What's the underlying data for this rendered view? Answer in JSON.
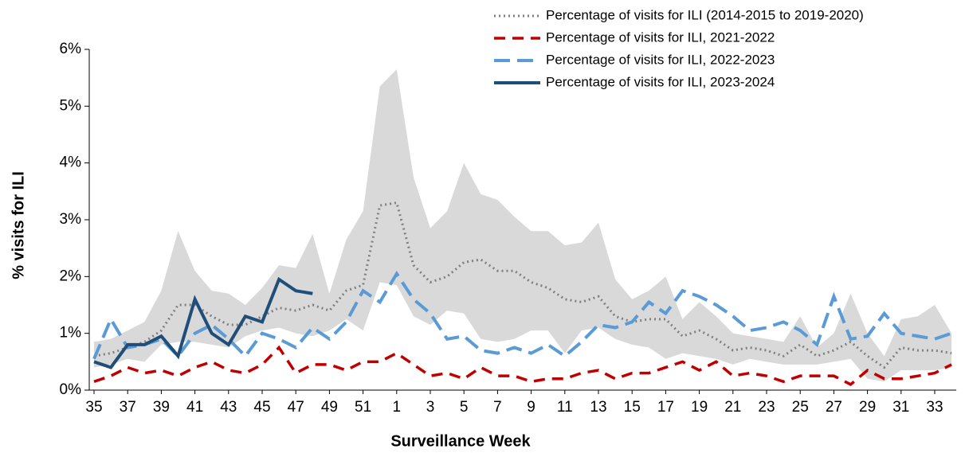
{
  "chart_data": {
    "type": "line",
    "x_label": "Surveillance  Week",
    "y_label": "% visits for ILI",
    "categories": [
      "35",
      null,
      "37",
      null,
      "39",
      null,
      "41",
      null,
      "43",
      null,
      "45",
      null,
      "47",
      null,
      "49",
      null,
      "51",
      null,
      "1",
      null,
      "3",
      null,
      "5",
      null,
      "7",
      null,
      "9",
      null,
      "11",
      null,
      "13",
      null,
      "15",
      null,
      "17",
      null,
      "19",
      null,
      "21",
      null,
      "23",
      null,
      "25",
      null,
      "27",
      null,
      "29",
      null,
      "31",
      null,
      "33",
      null
    ],
    "ylim": [
      0,
      6
    ],
    "yticks": [
      {
        "value": 0,
        "label": "0%"
      },
      {
        "value": 1,
        "label": "1%"
      },
      {
        "value": 2,
        "label": "2%"
      },
      {
        "value": 3,
        "label": "3%"
      },
      {
        "value": 4,
        "label": "4%"
      },
      {
        "value": 5,
        "label": "5%"
      },
      {
        "value": 6,
        "label": "6%"
      }
    ],
    "band": {
      "color": "#d9d9d9",
      "upper": [
        0.85,
        0.9,
        1.05,
        1.2,
        1.75,
        2.8,
        2.1,
        1.75,
        1.7,
        1.5,
        1.8,
        2.2,
        2.15,
        2.75,
        1.7,
        2.65,
        3.15,
        5.35,
        5.65,
        3.75,
        2.85,
        3.15,
        4.0,
        3.45,
        3.35,
        3.05,
        2.8,
        2.8,
        2.55,
        2.6,
        2.95,
        1.95,
        1.6,
        1.75,
        2.0,
        1.25,
        1.55,
        1.3,
        1.0,
        0.95,
        0.9,
        0.85,
        1.3,
        0.75,
        1.0,
        1.7,
        1.0,
        0.6,
        1.25,
        1.3,
        1.5,
        1.0
      ],
      "lower": [
        0.4,
        0.45,
        0.55,
        0.5,
        0.8,
        0.85,
        0.85,
        0.8,
        0.75,
        0.95,
        1.05,
        1.1,
        1.0,
        0.95,
        1.05,
        1.25,
        1.05,
        1.9,
        1.85,
        1.3,
        1.15,
        1.4,
        1.35,
        0.9,
        0.85,
        0.9,
        1.05,
        1.05,
        0.65,
        1.05,
        1.1,
        0.9,
        0.8,
        0.75,
        0.55,
        0.65,
        0.6,
        0.55,
        0.45,
        0.55,
        0.5,
        0.45,
        0.45,
        0.45,
        0.5,
        0.55,
        0.2,
        0.15,
        0.35,
        0.35,
        0.35,
        0.4
      ]
    },
    "series": [
      {
        "name": "Percentage of visits for ILI (2014-2015 to 2019-2020)",
        "color": "#808080",
        "dash": "dotted",
        "values": [
          0.6,
          0.65,
          0.75,
          0.85,
          1.05,
          1.5,
          1.5,
          1.3,
          1.15,
          1.15,
          1.3,
          1.45,
          1.4,
          1.5,
          1.4,
          1.75,
          1.85,
          3.25,
          3.3,
          2.2,
          1.9,
          2.0,
          2.25,
          2.3,
          2.1,
          2.1,
          1.9,
          1.8,
          1.6,
          1.55,
          1.65,
          1.3,
          1.2,
          1.25,
          1.25,
          0.95,
          1.05,
          0.9,
          0.7,
          0.75,
          0.7,
          0.6,
          0.8,
          0.6,
          0.7,
          0.85,
          0.6,
          0.4,
          0.75,
          0.7,
          0.7,
          0.65
        ]
      },
      {
        "name": "Percentage of visits for ILI, 2021-2022",
        "color": "#c00000",
        "dash": "dashed",
        "values": [
          0.15,
          0.25,
          0.4,
          0.3,
          0.35,
          0.25,
          0.4,
          0.5,
          0.35,
          0.3,
          0.45,
          0.75,
          0.3,
          0.45,
          0.45,
          0.35,
          0.5,
          0.5,
          0.65,
          0.45,
          0.25,
          0.3,
          0.2,
          0.4,
          0.25,
          0.25,
          0.15,
          0.2,
          0.2,
          0.3,
          0.35,
          0.2,
          0.3,
          0.3,
          0.4,
          0.5,
          0.35,
          0.5,
          0.25,
          0.3,
          0.25,
          0.15,
          0.25,
          0.25,
          0.25,
          0.1,
          0.35,
          0.2,
          0.2,
          0.25,
          0.3,
          0.45
        ]
      },
      {
        "name": "Percentage of visits for ILI, 2022-2023",
        "color": "#5b9bd5",
        "dash": "longdash",
        "values": [
          0.55,
          1.25,
          0.75,
          0.8,
          0.9,
          0.6,
          1.0,
          1.15,
          0.9,
          0.6,
          1.0,
          0.9,
          0.75,
          1.1,
          0.9,
          1.2,
          1.75,
          1.55,
          2.05,
          1.6,
          1.35,
          0.9,
          0.95,
          0.7,
          0.65,
          0.75,
          0.65,
          0.8,
          0.6,
          0.85,
          1.15,
          1.1,
          1.2,
          1.55,
          1.35,
          1.75,
          1.65,
          1.5,
          1.3,
          1.05,
          1.1,
          1.2,
          1.05,
          0.8,
          1.65,
          0.9,
          0.95,
          1.35,
          1.0,
          0.95,
          0.9,
          1.0
        ]
      },
      {
        "name": "Percentage of visits for ILI, 2023-2024",
        "color": "#1f4e79",
        "dash": "solid",
        "values": [
          0.5,
          0.4,
          0.8,
          0.8,
          0.95,
          0.6,
          1.6,
          1.0,
          0.8,
          1.3,
          1.2,
          1.95,
          1.75,
          1.7,
          null,
          null,
          null,
          null,
          null,
          null,
          null,
          null,
          null,
          null,
          null,
          null,
          null,
          null,
          null,
          null,
          null,
          null,
          null,
          null,
          null,
          null,
          null,
          null,
          null,
          null,
          null,
          null,
          null,
          null,
          null,
          null,
          null,
          null,
          null,
          null,
          null,
          null
        ]
      }
    ]
  }
}
